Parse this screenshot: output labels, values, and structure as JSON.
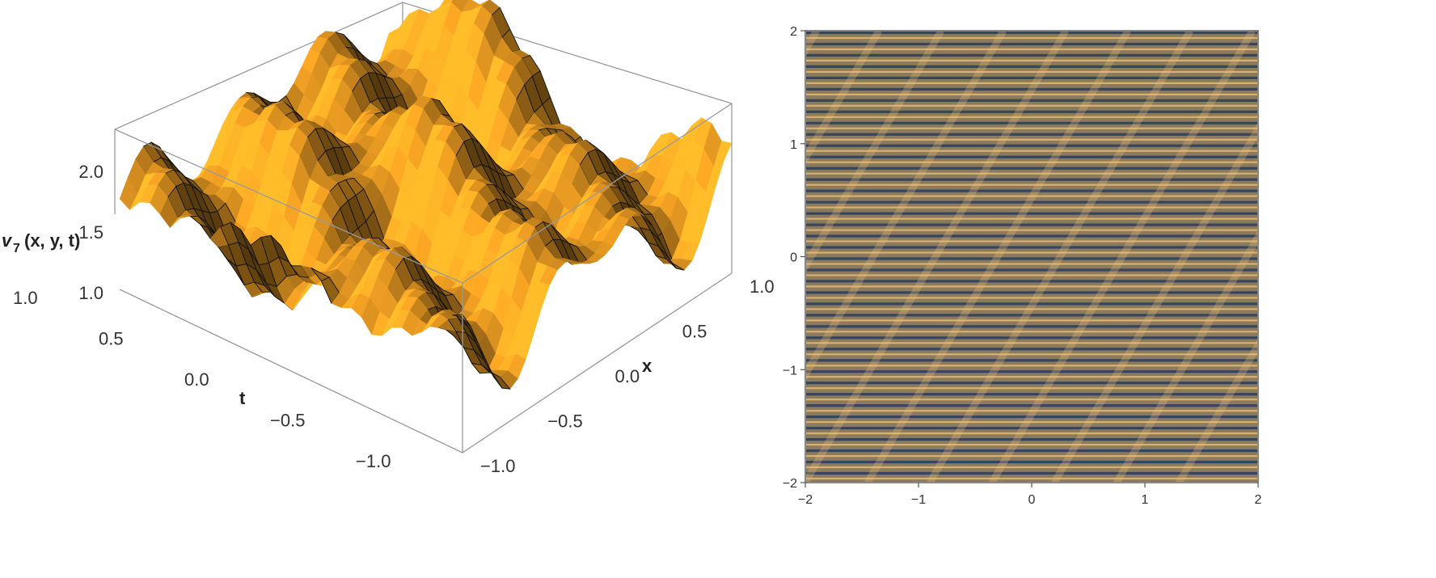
{
  "chart_data": [
    {
      "type": "surface3d",
      "zlabel_main": "v",
      "zlabel_sub": "7",
      "zlabel_args": "(x, y, t)",
      "xlabel": "x",
      "tlabel": "t",
      "x_ticks": [
        "−1.0",
        "−0.5",
        "0.0",
        "0.5",
        "1.0"
      ],
      "t_ticks": [
        "−1.0",
        "−0.5",
        "0.0",
        "0.5",
        "1.0"
      ],
      "z_ticks": [
        "1.0",
        "1.5",
        "2.0"
      ],
      "x_range": [
        -1,
        1
      ],
      "t_range": [
        -1,
        1
      ],
      "z_range": [
        1.0,
        2.4
      ],
      "surface_color": "#f7a424",
      "ridge_color": "#111111"
    },
    {
      "type": "contour",
      "x_ticks": [
        "−2",
        "−1",
        "0",
        "1",
        "2"
      ],
      "y_ticks": [
        "−2",
        "−1",
        "0",
        "1",
        "2"
      ],
      "x_range": [
        -2,
        2
      ],
      "y_range": [
        -2,
        2
      ],
      "color_low": "#2a3f5f",
      "color_high": "#f2c37a",
      "color_mid": "#8c7a5c"
    }
  ]
}
